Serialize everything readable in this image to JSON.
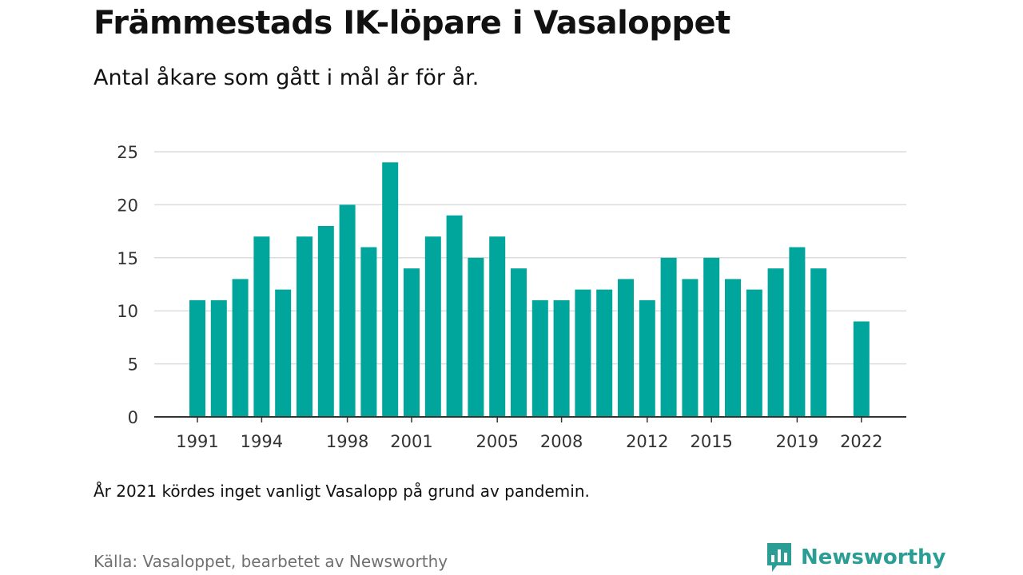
{
  "header": {
    "title": "Främmestads IK-löpare i Vasaloppet",
    "subtitle": "Antal åkare som gått i mål år för år."
  },
  "footer": {
    "note": "År 2021 kördes inget vanligt Vasalopp på grund av pandemin.",
    "source": "Källa: Vasaloppet, bearbetet av Newsworthy",
    "brand": "Newsworthy",
    "brand_icon": "bar-chart-speech-icon"
  },
  "colors": {
    "bar": "#00a59c",
    "grid": "#dcdcdc",
    "axis": "#333333",
    "brand": "#2a9e95"
  },
  "chart_data": {
    "type": "bar",
    "title": "Främmestads IK-löpare i Vasaloppet",
    "subtitle": "Antal åkare som gått i mål år för år.",
    "xlabel": "",
    "ylabel": "",
    "categories": [
      1991,
      1992,
      1993,
      1994,
      1995,
      1996,
      1997,
      1998,
      1999,
      2000,
      2001,
      2002,
      2003,
      2004,
      2005,
      2006,
      2007,
      2008,
      2009,
      2010,
      2011,
      2012,
      2013,
      2014,
      2015,
      2016,
      2017,
      2018,
      2019,
      2020,
      2021,
      2022
    ],
    "values": [
      11,
      11,
      13,
      17,
      12,
      17,
      18,
      20,
      16,
      24,
      14,
      17,
      19,
      15,
      17,
      14,
      11,
      11,
      12,
      12,
      13,
      11,
      15,
      13,
      15,
      13,
      12,
      14,
      16,
      14,
      null,
      9
    ],
    "x_tick_labels": [
      1991,
      1994,
      1998,
      2001,
      2005,
      2008,
      2012,
      2015,
      2019,
      2022
    ],
    "y_ticks": [
      0,
      5,
      10,
      15,
      20,
      25
    ],
    "ylim": [
      0,
      25
    ],
    "grid": true,
    "legend": false
  }
}
